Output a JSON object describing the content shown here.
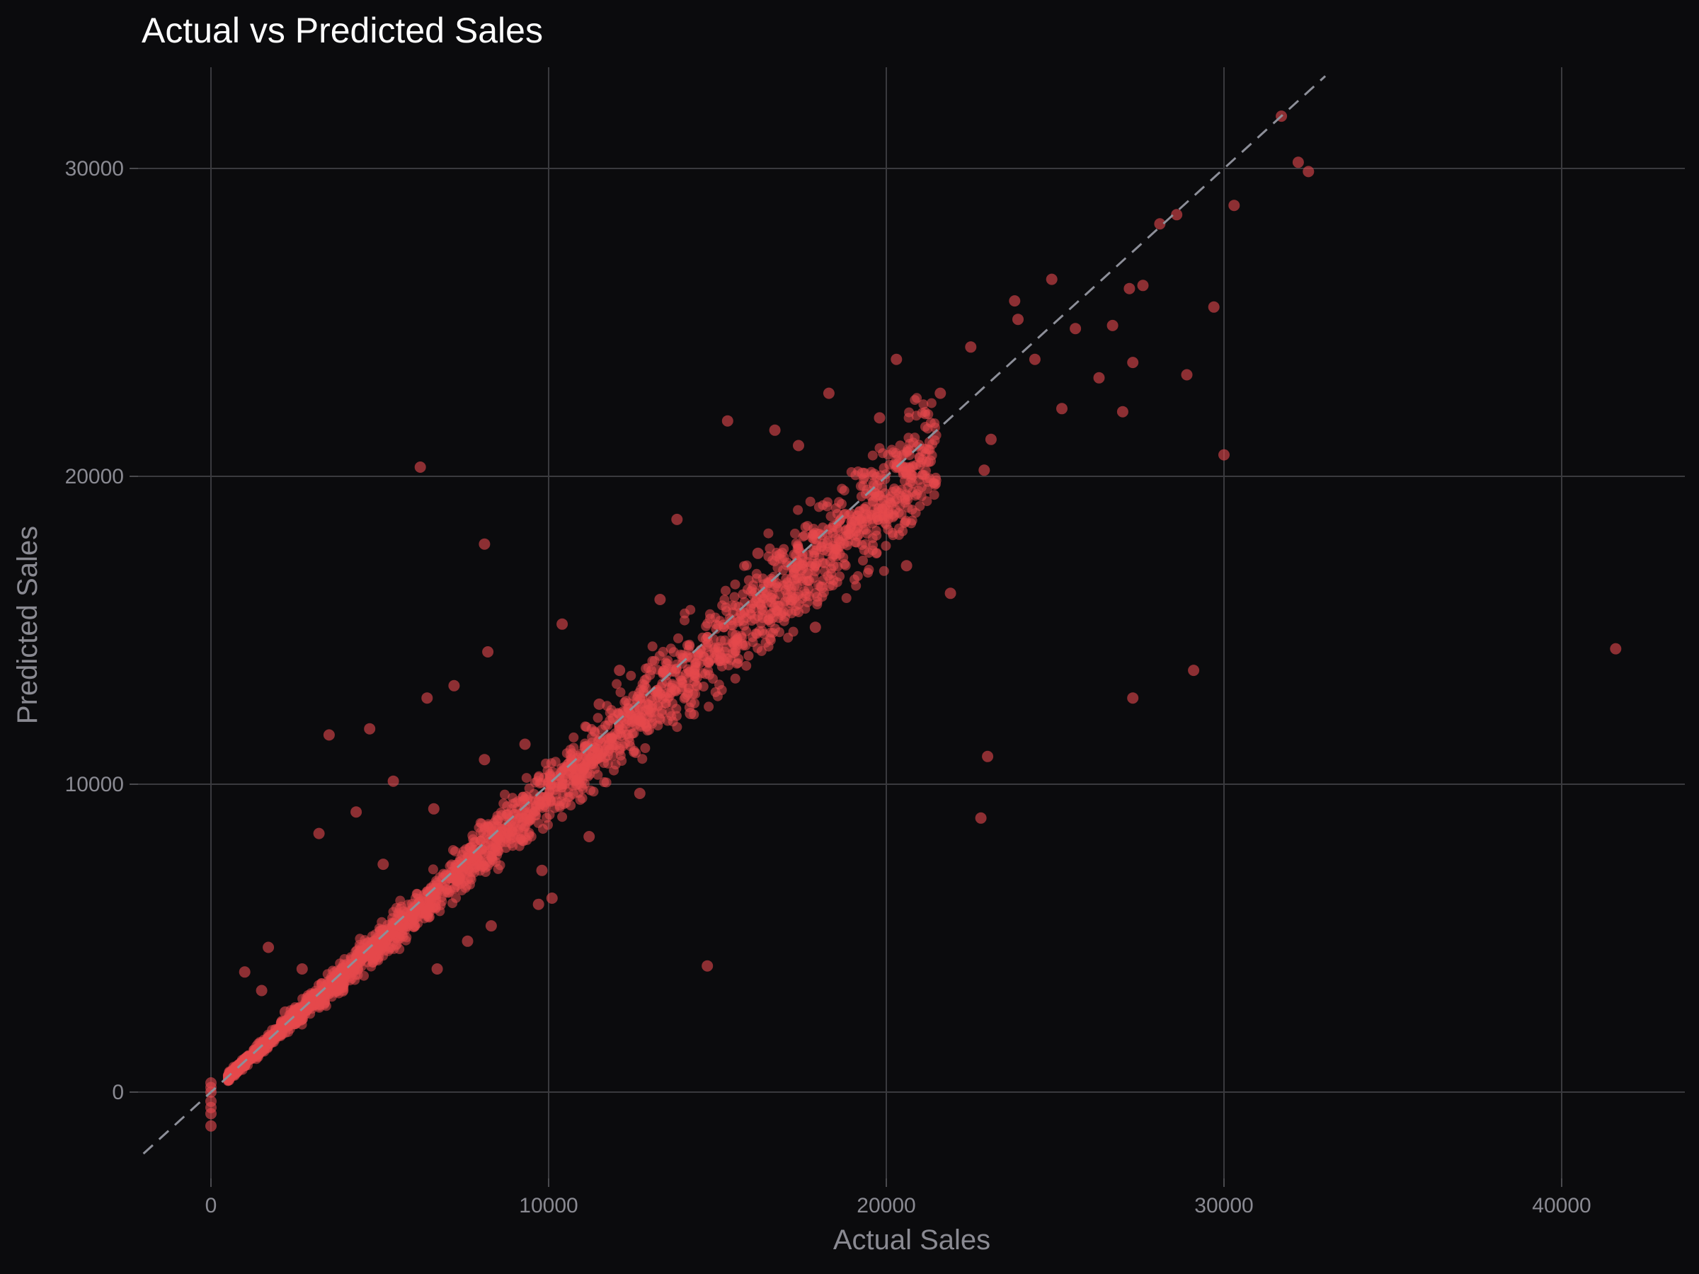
{
  "chart_data": {
    "type": "scatter",
    "title": "Actual vs Predicted Sales",
    "xlabel": "Actual Sales",
    "ylabel": "Predicted Sales",
    "xlim": [
      -2000,
      43500
    ],
    "ylim": [
      -2000,
      33000
    ],
    "xticks": [
      0,
      10000,
      20000,
      30000,
      40000
    ],
    "yticks": [
      0,
      10000,
      20000,
      30000
    ],
    "xtick_labels": [
      "0",
      "10000",
      "20000",
      "30000",
      "40000"
    ],
    "ytick_labels": [
      "0",
      "10000",
      "20000",
      "30000"
    ],
    "grid": true,
    "reference_line": {
      "style": "dashed",
      "from": [
        -2000,
        -2000
      ],
      "to": [
        33000,
        33000
      ],
      "color": "#8d8f99"
    },
    "point_color": "#e5484d",
    "background": "#0b0b0d",
    "series": [
      {
        "points": [
          [
            31700,
            31700
          ],
          [
            32200,
            30200
          ],
          [
            32500,
            29900
          ],
          [
            30300,
            28800
          ],
          [
            28600,
            28500
          ],
          [
            28100,
            28200
          ],
          [
            29700,
            25500
          ],
          [
            28900,
            23300
          ],
          [
            30000,
            20700
          ],
          [
            27200,
            26100
          ],
          [
            27000,
            22100
          ],
          [
            27300,
            23700
          ],
          [
            25200,
            22200
          ],
          [
            23900,
            25100
          ],
          [
            24400,
            23800
          ],
          [
            23100,
            21200
          ],
          [
            22900,
            20200
          ],
          [
            21900,
            16200
          ],
          [
            20300,
            23800
          ],
          [
            18300,
            22700
          ],
          [
            15300,
            21800
          ],
          [
            16700,
            21500
          ],
          [
            6200,
            20300
          ],
          [
            8100,
            17800
          ],
          [
            13800,
            18600
          ],
          [
            8200,
            14300
          ],
          [
            13300,
            16000
          ],
          [
            10400,
            15200
          ],
          [
            3500,
            11600
          ],
          [
            4700,
            11800
          ],
          [
            6400,
            12800
          ],
          [
            7200,
            13200
          ],
          [
            5400,
            10100
          ],
          [
            4300,
            9100
          ],
          [
            3200,
            8400
          ],
          [
            1700,
            4700
          ],
          [
            1000,
            3900
          ],
          [
            1500,
            3300
          ],
          [
            10100,
            6300
          ],
          [
            9700,
            6100
          ],
          [
            14700,
            4100
          ],
          [
            23000,
            10900
          ],
          [
            22800,
            8900
          ],
          [
            27300,
            12800
          ],
          [
            29100,
            13700
          ],
          [
            41600,
            14400
          ],
          [
            24900,
            26400
          ],
          [
            23800,
            25700
          ],
          [
            26700,
            24900
          ],
          [
            27600,
            26200
          ],
          [
            25600,
            24800
          ],
          [
            26300,
            23200
          ],
          [
            21600,
            22700
          ],
          [
            22500,
            24200
          ],
          [
            19800,
            21900
          ],
          [
            17400,
            21000
          ],
          [
            18100,
            16400
          ],
          [
            20600,
            17100
          ],
          [
            19300,
            20100
          ],
          [
            21300,
            20500
          ],
          [
            16200,
            17500
          ],
          [
            15100,
            14100
          ],
          [
            17900,
            15100
          ],
          [
            12700,
            9700
          ],
          [
            11200,
            8300
          ],
          [
            9800,
            7200
          ],
          [
            8300,
            5400
          ],
          [
            7600,
            4900
          ],
          [
            6700,
            4000
          ],
          [
            14200,
            12300
          ],
          [
            12100,
            13700
          ],
          [
            11500,
            12600
          ],
          [
            9300,
            11300
          ],
          [
            8100,
            10800
          ],
          [
            6600,
            9200
          ],
          [
            5100,
            7400
          ],
          [
            2700,
            4000
          ],
          [
            2200,
            2600
          ],
          [
            0,
            -1100
          ],
          [
            0,
            300
          ],
          [
            0,
            0
          ],
          [
            0,
            -300
          ],
          [
            0,
            150
          ],
          [
            0,
            -500
          ],
          [
            0,
            -700
          ]
        ],
        "trend_band": {
          "x_from": 500,
          "x_to": 21500,
          "center_slope": 0.97,
          "spread": 0.1
        }
      }
    ]
  }
}
